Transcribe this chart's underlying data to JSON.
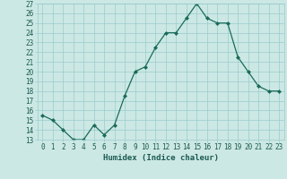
{
  "xlabel": "Humidex (Indice chaleur)",
  "x": [
    0,
    1,
    2,
    3,
    4,
    5,
    6,
    7,
    8,
    9,
    10,
    11,
    12,
    13,
    14,
    15,
    16,
    17,
    18,
    19,
    20,
    21,
    22,
    23
  ],
  "y": [
    15.5,
    15.0,
    14.0,
    13.0,
    13.0,
    14.5,
    13.5,
    14.5,
    17.5,
    20.0,
    20.5,
    22.5,
    24.0,
    24.0,
    25.5,
    27.0,
    25.5,
    25.0,
    25.0,
    21.5,
    20.0,
    18.5,
    18.0,
    18.0
  ],
  "line_color": "#1a6b5a",
  "marker_color": "#1a6b5a",
  "bg_color": "#cce8e4",
  "grid_color": "#99cccc",
  "tick_label_color": "#1a5a50",
  "xlabel_color": "#1a5a50",
  "ylim": [
    13,
    27
  ],
  "xlim": [
    -0.5,
    23.5
  ],
  "yticks": [
    13,
    14,
    15,
    16,
    17,
    18,
    19,
    20,
    21,
    22,
    23,
    24,
    25,
    26,
    27
  ],
  "xticks": [
    0,
    1,
    2,
    3,
    4,
    5,
    6,
    7,
    8,
    9,
    10,
    11,
    12,
    13,
    14,
    15,
    16,
    17,
    18,
    19,
    20,
    21,
    22,
    23
  ],
  "tick_fontsize": 5.5,
  "xlabel_fontsize": 6.5
}
